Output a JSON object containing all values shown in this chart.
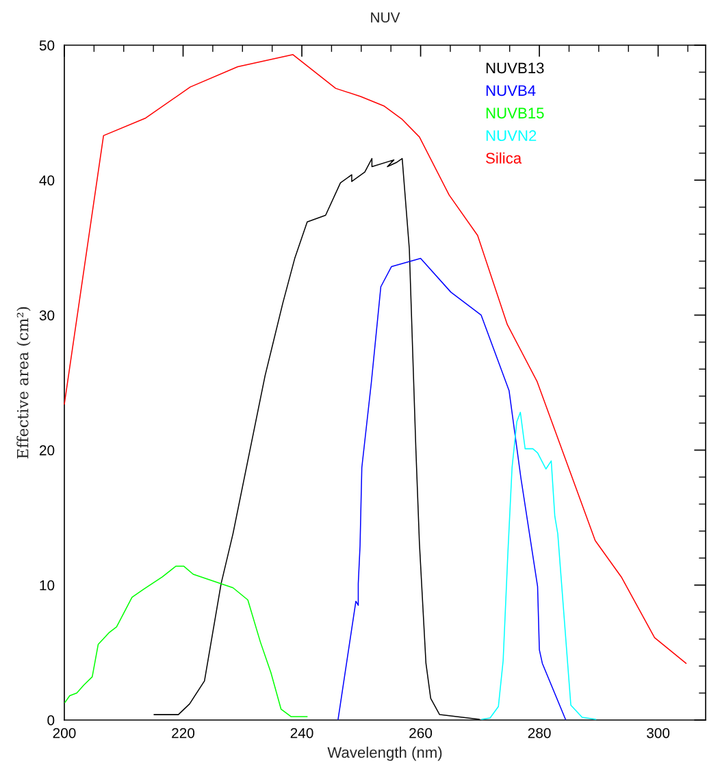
{
  "chart_data": {
    "type": "line",
    "title": "NUV",
    "xlabel": "Wavelength (nm)",
    "ylabel": "Effective area (cm²)",
    "xlim": [
      200,
      308
    ],
    "xticks": [
      200,
      220,
      240,
      260,
      280,
      300
    ],
    "ylim": [
      0,
      50
    ],
    "yticks": [
      0,
      10,
      20,
      30,
      40,
      50
    ],
    "grid": false,
    "legend": "top right",
    "marker": "none",
    "line_style": "solid",
    "series": [
      {
        "name": "NUVB13",
        "color": "#000000",
        "x": [
          215.1,
          219.2,
          221.1,
          223.6,
          226.4,
          228.4,
          233.8,
          236.8,
          238.8,
          240.9,
          244.0,
          246.5,
          248.4,
          248.4,
          250.6,
          251.8,
          251.8,
          255.5,
          254.4,
          255.9,
          256.9,
          258.1,
          259.2,
          259.8,
          260.9,
          261.7,
          263.2,
          269.9
        ],
        "values": [
          0.4,
          0.4,
          1.2,
          2.9,
          10.1,
          13.8,
          25.5,
          30.9,
          34.2,
          36.9,
          37.4,
          39.8,
          40.4,
          39.9,
          40.6,
          41.6,
          41.0,
          41.5,
          41.0,
          41.3,
          41.6,
          34.9,
          20.1,
          13.1,
          4.2,
          1.6,
          0.4,
          0.05
        ]
      },
      {
        "name": "NUVB4",
        "color": "#0000ff",
        "x": [
          246.1,
          249.1,
          249.5,
          249.5,
          249.8,
          250.1,
          251.7,
          253.3,
          255.1,
          260.0,
          265.1,
          270.2,
          274.9,
          276.9,
          279.7,
          280.0,
          280.5,
          284.4
        ],
        "values": [
          0.05,
          8.8,
          8.5,
          10.1,
          12.9,
          18.7,
          25.0,
          32.1,
          33.6,
          34.2,
          31.7,
          30.0,
          24.4,
          17.9,
          9.9,
          5.2,
          4.2,
          0.05
        ]
      },
      {
        "name": "NUVB15",
        "color": "#00ff00",
        "x": [
          200.1,
          200.9,
          202.1,
          203.3,
          204.7,
          205.7,
          207.6,
          208.8,
          211.4,
          213.4,
          216.5,
          218.8,
          220.1,
          221.7,
          228.4,
          230.9,
          233.0,
          234.8,
          236.5,
          238.2,
          240.9
        ],
        "values": [
          1.3,
          1.8,
          2.0,
          2.6,
          3.2,
          5.6,
          6.5,
          6.9,
          9.1,
          9.7,
          10.6,
          11.4,
          11.4,
          10.8,
          9.8,
          8.9,
          5.8,
          3.5,
          0.8,
          0.25,
          0.25
        ]
      },
      {
        "name": "NUVN2",
        "color": "#00ffff",
        "x": [
          270.3,
          271.7,
          273.1,
          273.9,
          274.7,
          275.4,
          276.2,
          276.8,
          277.6,
          278.9,
          279.7,
          281.1,
          282.0,
          282.6,
          283.1,
          285.3,
          287.2,
          289.5
        ],
        "values": [
          0.05,
          0.15,
          1.0,
          4.4,
          12.4,
          18.7,
          22.1,
          22.8,
          20.1,
          20.1,
          19.8,
          18.6,
          19.2,
          15.1,
          13.8,
          1.1,
          0.2,
          0.05
        ]
      },
      {
        "name": "Silica",
        "color": "#ff0000",
        "x": [
          200.0,
          206.6,
          213.7,
          221.2,
          229.2,
          238.5,
          245.7,
          249.9,
          253.8,
          256.9,
          259.8,
          264.8,
          269.6,
          274.6,
          279.6,
          289.4,
          293.8,
          299.4,
          304.7
        ],
        "values": [
          23.4,
          43.3,
          44.6,
          46.9,
          48.4,
          49.3,
          46.8,
          46.2,
          45.5,
          44.5,
          43.2,
          38.9,
          35.9,
          29.3,
          25.1,
          13.3,
          10.6,
          6.1,
          4.2
        ]
      }
    ]
  }
}
